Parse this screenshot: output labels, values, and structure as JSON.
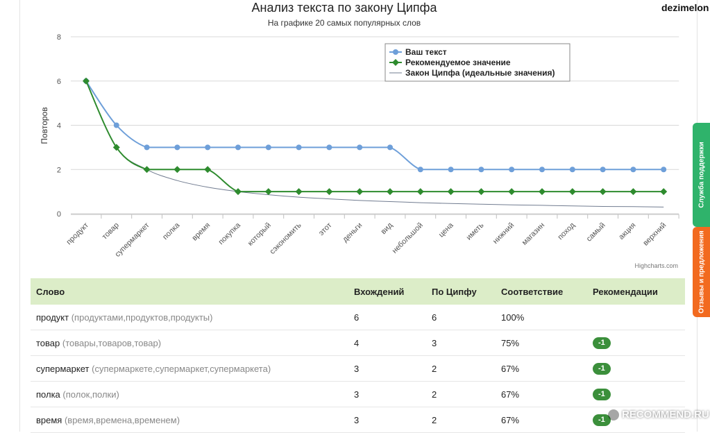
{
  "user": {
    "name": "dezimelon"
  },
  "chart_data": {
    "type": "line",
    "title": "Анализ текста по закону Ципфа",
    "subtitle": "На графике 20 самых популярных слов",
    "ylabel": "Повторов",
    "ylim": [
      0,
      8
    ],
    "yticks": [
      0,
      2,
      4,
      6,
      8
    ],
    "grid": true,
    "legend_position": "top-right",
    "credits": "Highcharts.com",
    "categories": [
      "продукт",
      "товар",
      "супермаркет",
      "полка",
      "время",
      "покупка",
      "который",
      "сэкономить",
      "этот",
      "деньги",
      "вид",
      "небольшой",
      "цена",
      "иметь",
      "нижний",
      "магазин",
      "поход",
      "самый",
      "акция",
      "верхний"
    ],
    "series": [
      {
        "name": "Ваш текст",
        "color": "#6e9fd9",
        "marker": "circle",
        "values": [
          6,
          4,
          3,
          3,
          3,
          3,
          3,
          3,
          3,
          3,
          3,
          2,
          2,
          2,
          2,
          2,
          2,
          2,
          2,
          2
        ]
      },
      {
        "name": "Рекомендуемое значение",
        "color": "#2e8b2e",
        "marker": "diamond",
        "values": [
          6,
          3,
          2,
          2,
          2,
          1,
          1,
          1,
          1,
          1,
          1,
          1,
          1,
          1,
          1,
          1,
          1,
          1,
          1,
          1
        ]
      },
      {
        "name": "Закон Ципфа (идеальные значения)",
        "color": "#717c90",
        "marker": "none",
        "values": [
          6,
          3,
          2,
          1.5,
          1.2,
          1,
          0.86,
          0.75,
          0.67,
          0.6,
          0.55,
          0.5,
          0.46,
          0.43,
          0.4,
          0.38,
          0.35,
          0.33,
          0.32,
          0.3
        ]
      }
    ]
  },
  "table": {
    "headers": {
      "word": "Слово",
      "occurrences": "Вхождений",
      "zipf": "По Ципфу",
      "match": "Соответствие",
      "recs": "Рекомендации"
    },
    "rows": [
      {
        "word": "продукт",
        "forms": "(продуктами,продуктов,продукты)",
        "occurrences": "6",
        "zipf": "6",
        "match": "100%",
        "rec": ""
      },
      {
        "word": "товар",
        "forms": "(товары,товаров,товар)",
        "occurrences": "4",
        "zipf": "3",
        "match": "75%",
        "rec": "-1"
      },
      {
        "word": "супермаркет",
        "forms": "(супермаркете,супермаркет,супермаркета)",
        "occurrences": "3",
        "zipf": "2",
        "match": "67%",
        "rec": "-1"
      },
      {
        "word": "полка",
        "forms": "(полок,полки)",
        "occurrences": "3",
        "zipf": "2",
        "match": "67%",
        "rec": "-1"
      },
      {
        "word": "время",
        "forms": "(время,времена,временем)",
        "occurrences": "3",
        "zipf": "2",
        "match": "67%",
        "rec": "-1"
      }
    ]
  },
  "side_tabs": {
    "support": "Служба поддержки",
    "feedback": "Отзывы и предложения"
  },
  "watermark": "RECOMMEND.RU"
}
